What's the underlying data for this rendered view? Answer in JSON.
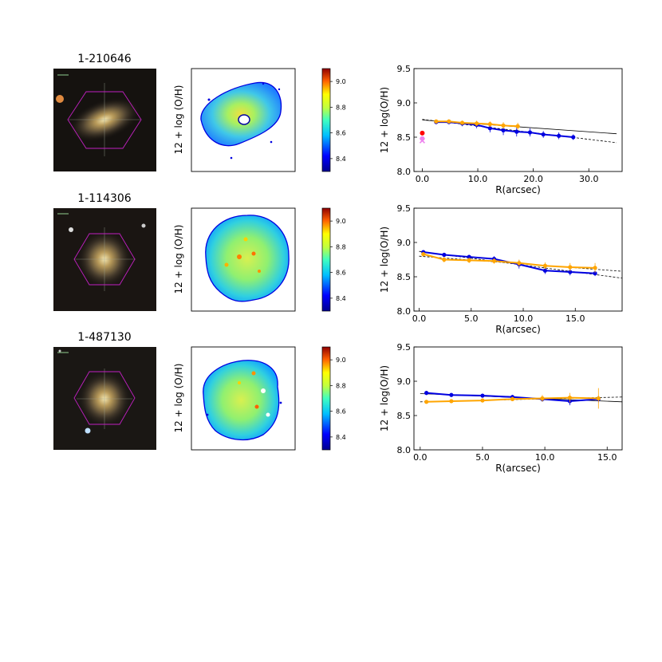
{
  "figure": {
    "rows": [
      {
        "galaxy_id": "1-210646",
        "map_ylabel": "12 + log (O/H)",
        "colorbar_ticks": [
          "8.4",
          "8.6",
          "8.8",
          "9.0"
        ],
        "map_shape": "round-small"
      },
      {
        "galaxy_id": "1-114306",
        "map_ylabel": "12 + log (O/H)",
        "colorbar_ticks": [
          "8.4",
          "8.6",
          "8.8",
          "9.0"
        ],
        "map_shape": "round-large"
      },
      {
        "galaxy_id": "1-487130",
        "map_ylabel": "12 + log (O/H)",
        "colorbar_ticks": [
          "8.4",
          "8.6",
          "8.8",
          "9.0"
        ],
        "map_shape": "irregular"
      }
    ],
    "colors": {
      "blue_profile": "#0000e0",
      "orange_profile": "#ffa500",
      "fit_line": "#000000",
      "hexagon": "#c020c0",
      "red_marker": "#ff0000",
      "pink_marker": "#ee82ee"
    }
  },
  "chart_data": [
    {
      "type": "line",
      "panel": "row1-profile",
      "xlabel": "R(arcsec)",
      "ylabel": "12 + log(O/H)",
      "xlim": [
        -1.5,
        36
      ],
      "ylim": [
        8.0,
        9.5
      ],
      "xticks": [
        "0.0",
        "10.0",
        "20.0",
        "30.0"
      ],
      "yticks": [
        "8.0",
        "8.5",
        "9.0",
        "9.5"
      ],
      "series": [
        {
          "x": [
            2.5,
            4.8,
            7.2,
            9.8,
            12.2,
            14.6,
            17.0,
            19.4,
            21.8,
            24.6,
            27.2
          ],
          "y": [
            8.72,
            8.72,
            8.7,
            8.68,
            8.63,
            8.6,
            8.58,
            8.57,
            8.54,
            8.52,
            8.5
          ],
          "err": [
            0.03,
            0.03,
            0.04,
            0.05,
            0.06,
            0.07,
            0.07,
            0.06,
            0.05,
            0.05,
            0.04
          ]
        },
        {
          "x": [
            2.5,
            4.8,
            7.2,
            9.8,
            12.2,
            14.6,
            17.2
          ],
          "y": [
            8.73,
            8.73,
            8.71,
            8.7,
            8.69,
            8.67,
            8.66
          ],
          "err": [
            0.02,
            0.03,
            0.03,
            0.04,
            0.04,
            0.05,
            0.05
          ]
        }
      ],
      "fits": [
        {
          "x": [
            0.0,
            35.0
          ],
          "y": [
            8.76,
            8.42
          ],
          "style": "dashed"
        },
        {
          "x": [
            0.0,
            35.0
          ],
          "y": [
            8.75,
            8.55
          ],
          "style": "solid"
        }
      ],
      "markers": [
        {
          "x": 0.0,
          "y": 8.56,
          "shape": "circle"
        },
        {
          "x": 0.0,
          "y": 8.48,
          "shape": "circle"
        },
        {
          "x": 0.0,
          "y": 8.45,
          "shape": "cross"
        }
      ]
    },
    {
      "type": "line",
      "panel": "row2-profile",
      "xlabel": "R(arcsec)",
      "ylabel": "12 + log(O/H)",
      "xlim": [
        -0.5,
        19.5
      ],
      "ylim": [
        8.0,
        9.5
      ],
      "xticks": [
        "0.0",
        "5.0",
        "10.0",
        "15.0"
      ],
      "yticks": [
        "8.0",
        "8.5",
        "9.0",
        "9.5"
      ],
      "series": [
        {
          "x": [
            0.4,
            2.4,
            4.8,
            7.2,
            9.6,
            12.1,
            14.5,
            16.9
          ],
          "y": [
            8.86,
            8.82,
            8.79,
            8.76,
            8.68,
            8.59,
            8.57,
            8.55
          ],
          "err": [
            0.03,
            0.03,
            0.03,
            0.04,
            0.06,
            0.05,
            0.05,
            0.04
          ]
        },
        {
          "x": [
            0.4,
            2.4,
            4.8,
            7.2,
            9.6,
            12.1,
            14.5,
            16.9
          ],
          "y": [
            8.83,
            8.75,
            8.74,
            8.73,
            8.7,
            8.66,
            8.64,
            8.63
          ],
          "err": [
            0.03,
            0.04,
            0.04,
            0.04,
            0.05,
            0.05,
            0.06,
            0.07
          ]
        }
      ],
      "fits": [
        {
          "x": [
            0.0,
            19.5
          ],
          "y": [
            8.87,
            8.48
          ],
          "style": "dashed"
        },
        {
          "x": [
            0.0,
            19.5
          ],
          "y": [
            8.8,
            8.58
          ],
          "style": "dashed"
        }
      ],
      "markers": []
    },
    {
      "type": "line",
      "panel": "row3-profile",
      "xlabel": "R(arcsec)",
      "ylabel": "12 + log(O/H)",
      "xlim": [
        -0.5,
        16.2
      ],
      "ylim": [
        8.0,
        9.5
      ],
      "xticks": [
        "0.0",
        "5.0",
        "10.0",
        "15.0"
      ],
      "yticks": [
        "8.0",
        "8.5",
        "9.0",
        "9.5"
      ],
      "series": [
        {
          "x": [
            0.5,
            2.5,
            5.0,
            7.4,
            9.8,
            12.0,
            14.3
          ],
          "y": [
            8.83,
            8.8,
            8.79,
            8.77,
            8.74,
            8.71,
            8.74
          ],
          "err": [
            0.03,
            0.03,
            0.03,
            0.03,
            0.04,
            0.06,
            0.05
          ]
        },
        {
          "x": [
            0.5,
            2.5,
            5.0,
            7.4,
            9.8,
            12.0,
            14.3
          ],
          "y": [
            8.7,
            8.71,
            8.72,
            8.74,
            8.75,
            8.76,
            8.75
          ],
          "err": [
            0.02,
            0.02,
            0.03,
            0.03,
            0.05,
            0.07,
            0.15
          ]
        }
      ],
      "fits": [
        {
          "x": [
            0.0,
            16.2
          ],
          "y": [
            8.82,
            8.7
          ],
          "style": "solid"
        },
        {
          "x": [
            0.0,
            16.2
          ],
          "y": [
            8.7,
            8.77
          ],
          "style": "dashed"
        }
      ],
      "markers": []
    }
  ]
}
